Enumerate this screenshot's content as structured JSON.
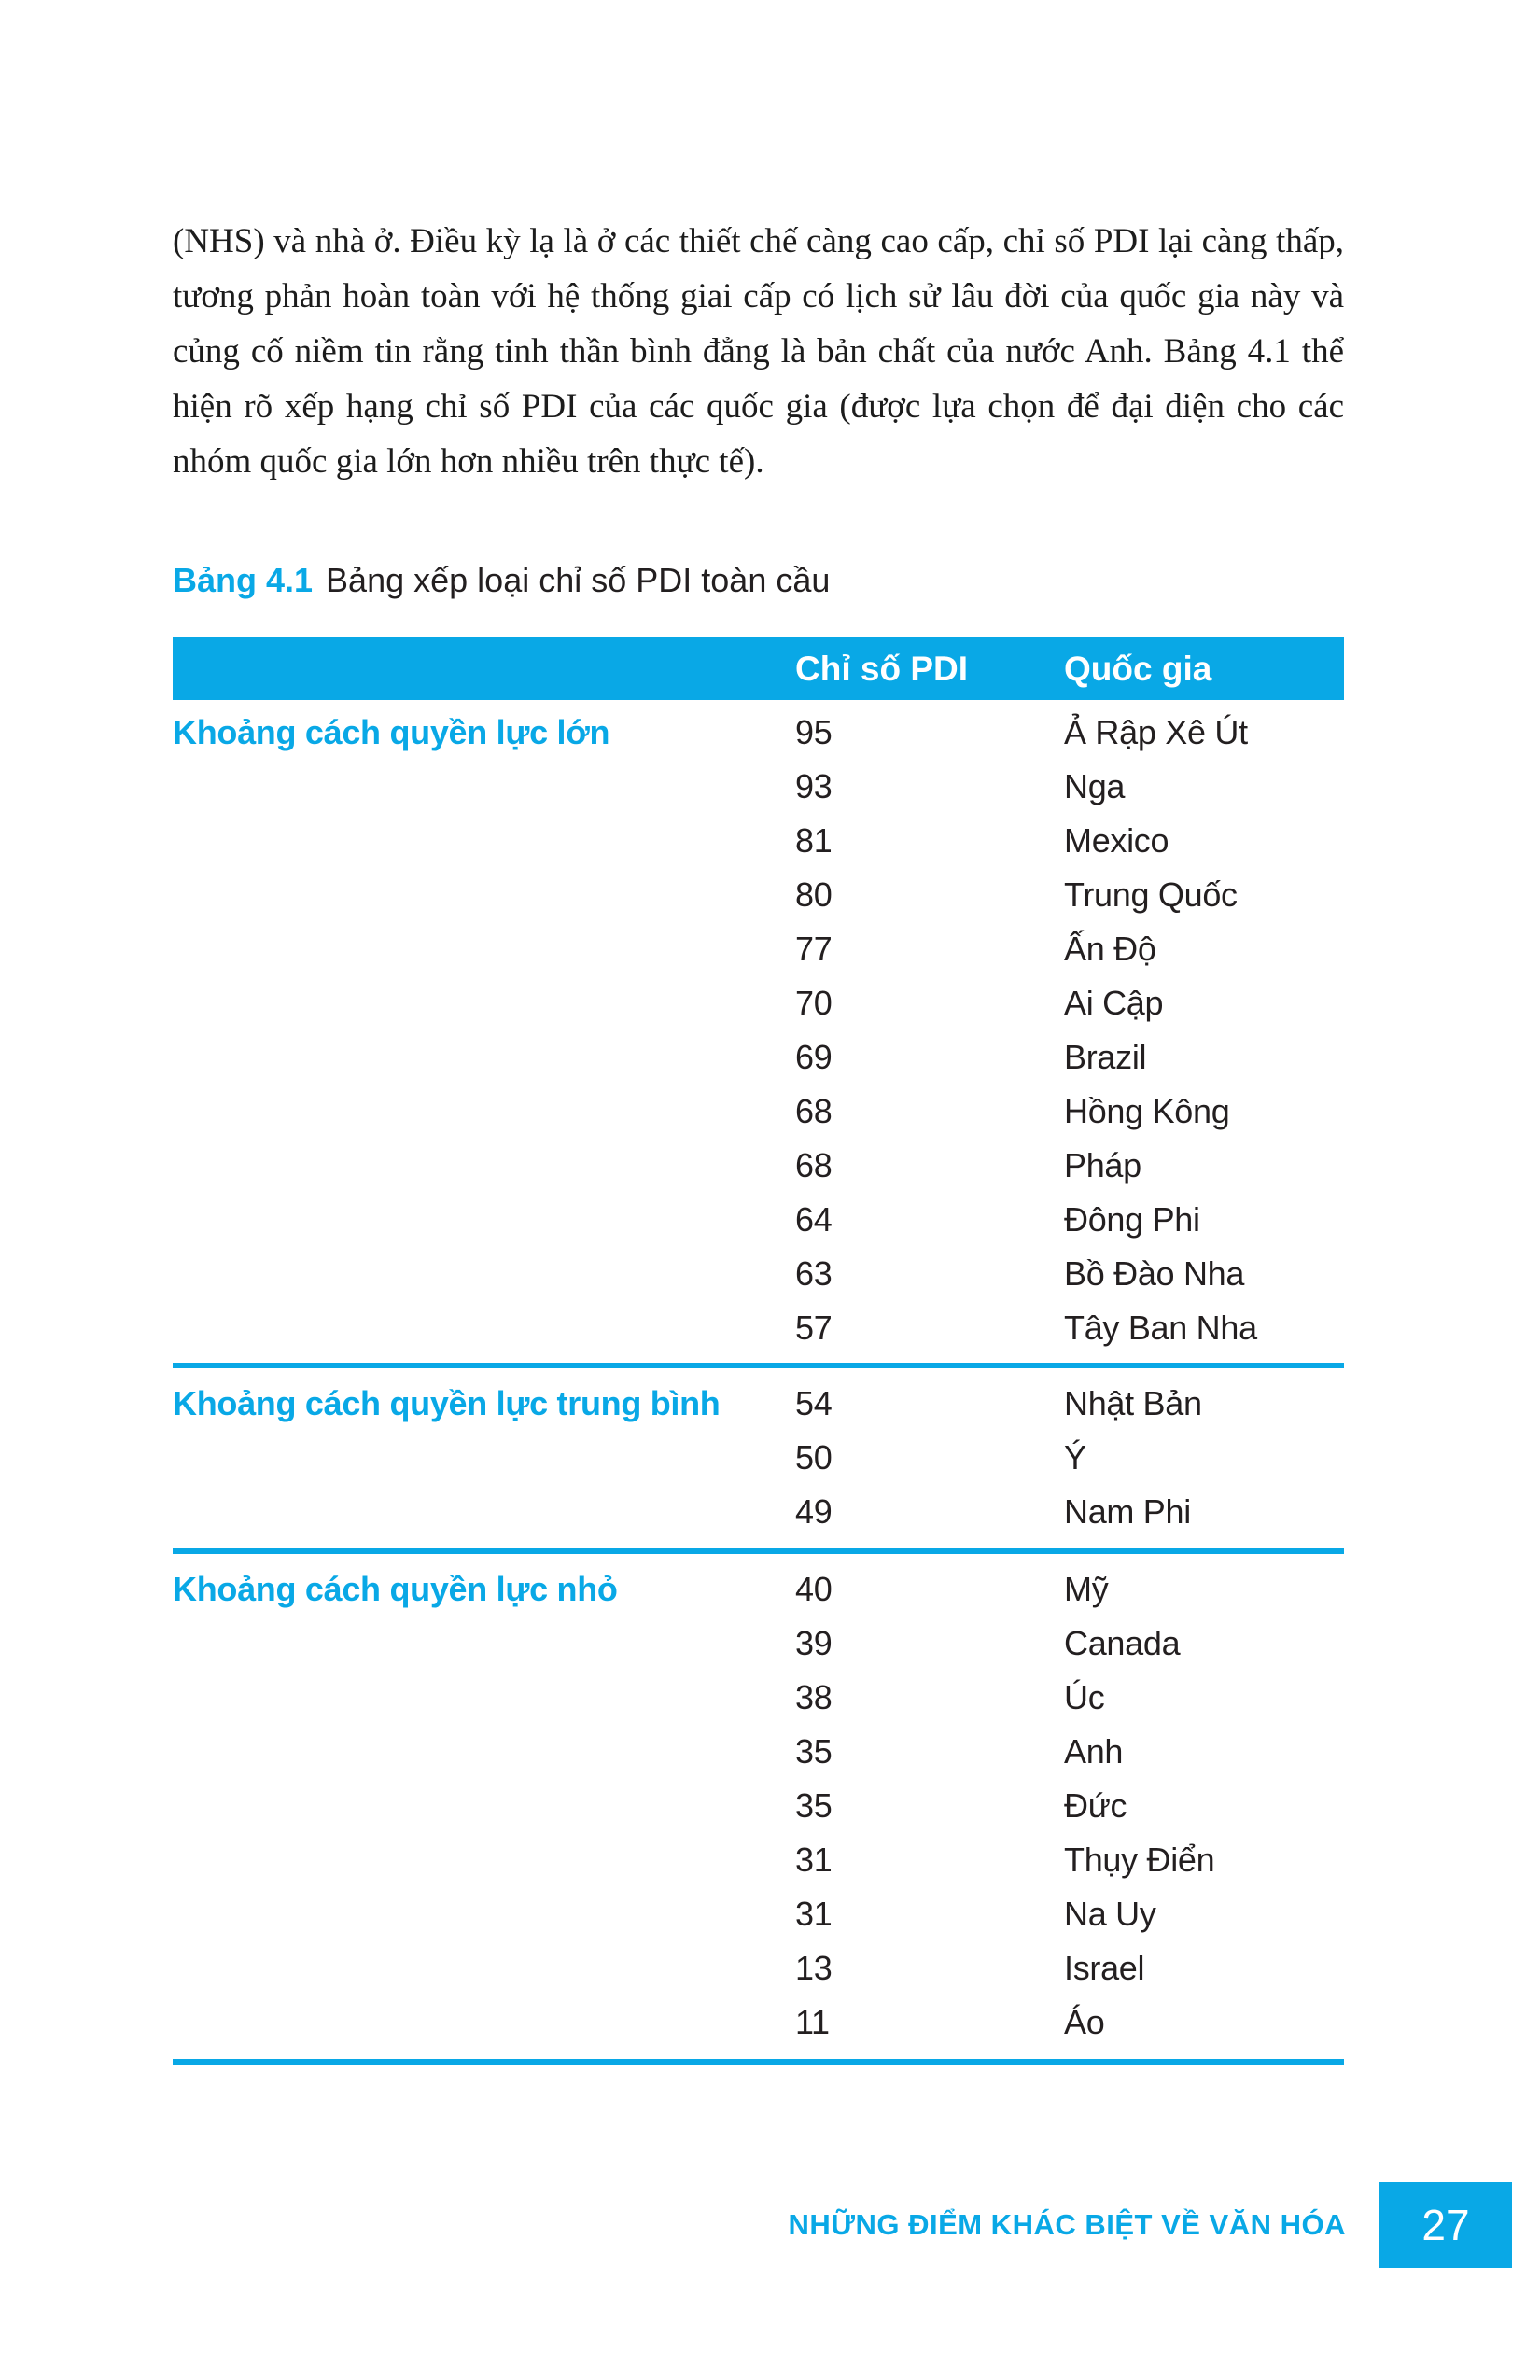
{
  "colors": {
    "accent": "#09a8e6",
    "text": "#231f20"
  },
  "paragraph": "(NHS) và nhà ở. Điều kỳ lạ là ở các thiết chế càng cao cấp, chỉ số PDI lại càng thấp, tương phản hoàn toàn với hệ thống giai cấp có lịch sử lâu đời của quốc gia này và củng cố niềm tin rằng tinh thần bình đẳng là bản chất của nước Anh. Bảng 4.1 thể hiện rõ xếp hạng chỉ số PDI của các quốc gia (được lựa chọn để đại diện cho các nhóm quốc gia lớn hơn nhiều trên thực tế).",
  "caption": {
    "label": "Bảng 4.1",
    "text": "Bảng xếp loại chỉ số PDI toàn cầu"
  },
  "table": {
    "headers": {
      "pdi": "Chỉ số PDI",
      "country": "Quốc gia"
    },
    "sections": [
      {
        "label": "Khoảng cách quyền lực lớn",
        "rows": [
          {
            "pdi": "95",
            "country": "Ả Rập Xê Út"
          },
          {
            "pdi": "93",
            "country": "Nga"
          },
          {
            "pdi": "81",
            "country": "Mexico"
          },
          {
            "pdi": "80",
            "country": "Trung Quốc"
          },
          {
            "pdi": "77",
            "country": "Ấn Độ"
          },
          {
            "pdi": "70",
            "country": "Ai Cập"
          },
          {
            "pdi": "69",
            "country": "Brazil"
          },
          {
            "pdi": "68",
            "country": "Hồng Kông"
          },
          {
            "pdi": "68",
            "country": "Pháp"
          },
          {
            "pdi": "64",
            "country": "Đông Phi"
          },
          {
            "pdi": "63",
            "country": "Bồ Đào Nha"
          },
          {
            "pdi": "57",
            "country": "Tây Ban Nha"
          }
        ]
      },
      {
        "label": "Khoảng cách quyền lực trung bình",
        "rows": [
          {
            "pdi": "54",
            "country": "Nhật Bản"
          },
          {
            "pdi": "50",
            "country": "Ý"
          },
          {
            "pdi": "49",
            "country": "Nam Phi"
          }
        ]
      },
      {
        "label": "Khoảng cách quyền lực nhỏ",
        "rows": [
          {
            "pdi": "40",
            "country": "Mỹ"
          },
          {
            "pdi": "39",
            "country": "Canada"
          },
          {
            "pdi": "38",
            "country": "Úc"
          },
          {
            "pdi": "35",
            "country": "Anh"
          },
          {
            "pdi": "35",
            "country": "Đức"
          },
          {
            "pdi": "31",
            "country": "Thụy Điển"
          },
          {
            "pdi": "31",
            "country": "Na Uy"
          },
          {
            "pdi": "13",
            "country": "Israel"
          },
          {
            "pdi": "11",
            "country": "Áo"
          }
        ]
      }
    ]
  },
  "footer": {
    "title": "NHỮNG ĐIỂM KHÁC BIỆT VỀ VĂN HÓA",
    "page_number": "27"
  }
}
